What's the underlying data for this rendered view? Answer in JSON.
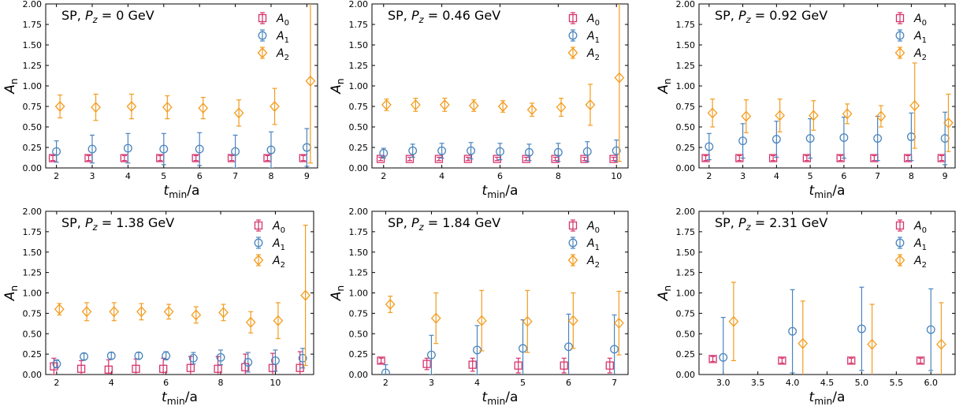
{
  "figure": {
    "ylabel_main": "A",
    "ylabel_sub": "n",
    "xlabel_main": "t",
    "xlabel_sub": "min",
    "xlabel_rest": "/a"
  },
  "legend": [
    {
      "main": "A",
      "sub": "0",
      "color": "#d6336c",
      "marker": "square"
    },
    {
      "main": "A",
      "sub": "1",
      "color": "#4a85bd",
      "marker": "circle"
    },
    {
      "main": "A",
      "sub": "2",
      "color": "#f39c1e",
      "marker": "diamond"
    }
  ],
  "chart_data": [
    {
      "type": "scatter",
      "title_prefix": "SP, ",
      "title_sym": "P",
      "title_sub": "z",
      "title_value": " = 0 GeV",
      "xlim": [
        1.7,
        9.3
      ],
      "ylim": [
        0,
        2
      ],
      "xticks": [
        2,
        3,
        4,
        5,
        6,
        7,
        8,
        9
      ],
      "yticks": [
        0,
        0.25,
        0.5,
        0.75,
        1.0,
        1.25,
        1.5,
        1.75,
        2.0
      ],
      "grid": false,
      "legend_position": "top-right",
      "series": [
        {
          "name": "A0",
          "x": [
            1.9,
            2.9,
            3.9,
            4.9,
            5.9,
            6.9,
            7.9,
            8.9
          ],
          "y": [
            0.12,
            0.12,
            0.12,
            0.12,
            0.12,
            0.12,
            0.12,
            0.12
          ],
          "err": [
            0.03,
            0.03,
            0.03,
            0.03,
            0.03,
            0.03,
            0.03,
            0.03
          ]
        },
        {
          "name": "A1",
          "x": [
            2.0,
            3.0,
            4.0,
            5.0,
            6.0,
            7.0,
            8.0,
            9.0
          ],
          "y": [
            0.2,
            0.23,
            0.24,
            0.23,
            0.23,
            0.2,
            0.22,
            0.25
          ],
          "err": [
            0.13,
            0.17,
            0.18,
            0.19,
            0.2,
            0.2,
            0.22,
            0.23
          ]
        },
        {
          "name": "A2",
          "x": [
            2.1,
            3.1,
            4.1,
            5.1,
            6.1,
            7.1,
            8.1,
            9.1
          ],
          "y": [
            0.75,
            0.74,
            0.75,
            0.74,
            0.73,
            0.67,
            0.75,
            1.06
          ],
          "err": [
            0.14,
            0.16,
            0.15,
            0.14,
            0.13,
            0.16,
            0.22,
            1.0
          ]
        }
      ]
    },
    {
      "type": "scatter",
      "title_prefix": "SP, ",
      "title_sym": "P",
      "title_sub": "z",
      "title_value": " = 0.46 GeV",
      "xlim": [
        1.6,
        10.4
      ],
      "ylim": [
        0,
        2
      ],
      "xticks": [
        2,
        4,
        6,
        8,
        10
      ],
      "yticks": [
        0,
        0.25,
        0.5,
        0.75,
        1.0,
        1.25,
        1.5,
        1.75,
        2.0
      ],
      "grid": false,
      "legend_position": "top-right",
      "series": [
        {
          "name": "A0",
          "x": [
            1.9,
            2.9,
            3.9,
            4.9,
            5.9,
            6.9,
            7.9,
            8.9,
            9.9
          ],
          "y": [
            0.11,
            0.11,
            0.11,
            0.11,
            0.11,
            0.11,
            0.11,
            0.11,
            0.11
          ],
          "err": [
            0.02,
            0.02,
            0.02,
            0.02,
            0.02,
            0.02,
            0.02,
            0.02,
            0.02
          ]
        },
        {
          "name": "A1",
          "x": [
            2.0,
            3.0,
            4.0,
            5.0,
            6.0,
            7.0,
            8.0,
            9.0,
            10.0
          ],
          "y": [
            0.18,
            0.21,
            0.21,
            0.21,
            0.2,
            0.19,
            0.19,
            0.2,
            0.21
          ],
          "err": [
            0.06,
            0.08,
            0.09,
            0.1,
            0.1,
            0.1,
            0.11,
            0.12,
            0.13
          ]
        },
        {
          "name": "A2",
          "x": [
            2.1,
            3.1,
            4.1,
            5.1,
            6.1,
            7.1,
            8.1,
            9.1,
            10.1
          ],
          "y": [
            0.77,
            0.77,
            0.77,
            0.76,
            0.75,
            0.71,
            0.74,
            0.77,
            1.1
          ],
          "err": [
            0.07,
            0.08,
            0.08,
            0.07,
            0.07,
            0.08,
            0.11,
            0.25,
            1.02
          ]
        }
      ]
    },
    {
      "type": "scatter",
      "title_prefix": "SP, ",
      "title_sym": "P",
      "title_sub": "z",
      "title_value": " = 0.92 GeV",
      "xlim": [
        1.7,
        9.3
      ],
      "ylim": [
        0,
        2
      ],
      "xticks": [
        2,
        3,
        4,
        5,
        6,
        7,
        8,
        9
      ],
      "yticks": [
        0,
        0.25,
        0.5,
        0.75,
        1.0,
        1.25,
        1.5,
        1.75,
        2.0
      ],
      "grid": false,
      "legend_position": "top-right",
      "series": [
        {
          "name": "A0",
          "x": [
            1.9,
            2.9,
            3.9,
            4.9,
            5.9,
            6.9,
            7.9,
            8.9
          ],
          "y": [
            0.12,
            0.12,
            0.12,
            0.12,
            0.12,
            0.12,
            0.12,
            0.12
          ],
          "err": [
            0.03,
            0.03,
            0.03,
            0.03,
            0.03,
            0.03,
            0.03,
            0.03
          ]
        },
        {
          "name": "A1",
          "x": [
            2.0,
            3.0,
            4.0,
            5.0,
            6.0,
            7.0,
            8.0,
            9.0
          ],
          "y": [
            0.26,
            0.33,
            0.35,
            0.36,
            0.37,
            0.36,
            0.38,
            0.36
          ],
          "err": [
            0.16,
            0.21,
            0.22,
            0.24,
            0.25,
            0.27,
            0.29,
            0.32
          ]
        },
        {
          "name": "A2",
          "x": [
            2.1,
            3.1,
            4.1,
            5.1,
            6.1,
            7.1,
            8.1,
            9.1
          ],
          "y": [
            0.67,
            0.63,
            0.64,
            0.64,
            0.66,
            0.63,
            0.76,
            0.55
          ],
          "err": [
            0.17,
            0.2,
            0.2,
            0.18,
            0.12,
            0.13,
            0.52,
            0.35
          ]
        }
      ]
    },
    {
      "type": "scatter",
      "title_prefix": "SP, ",
      "title_sym": "P",
      "title_sub": "z",
      "title_value": " = 1.38 GeV",
      "xlim": [
        1.6,
        11.4
      ],
      "ylim": [
        0,
        2
      ],
      "xticks": [
        2,
        4,
        6,
        8,
        10
      ],
      "yticks": [
        0,
        0.25,
        0.5,
        0.75,
        1.0,
        1.25,
        1.5,
        1.75,
        2.0
      ],
      "grid": false,
      "legend_position": "top-right",
      "series": [
        {
          "name": "A0",
          "x": [
            1.9,
            2.9,
            3.9,
            4.9,
            5.9,
            6.9,
            7.9,
            8.9,
            9.9,
            10.9
          ],
          "y": [
            0.1,
            0.07,
            0.06,
            0.07,
            0.07,
            0.08,
            0.07,
            0.09,
            0.08,
            0.08
          ],
          "err": [
            0.1,
            0.1,
            0.12,
            0.12,
            0.13,
            0.14,
            0.15,
            0.16,
            0.18,
            0.2
          ]
        },
        {
          "name": "A1",
          "x": [
            2.0,
            3.0,
            4.0,
            5.0,
            6.0,
            7.0,
            8.0,
            9.0,
            10.0,
            11.0
          ],
          "y": [
            0.13,
            0.22,
            0.23,
            0.23,
            0.23,
            0.2,
            0.21,
            0.15,
            0.17,
            0.2
          ],
          "err": [
            0.05,
            0.04,
            0.04,
            0.04,
            0.05,
            0.07,
            0.09,
            0.12,
            0.13,
            0.12
          ]
        },
        {
          "name": "A2",
          "x": [
            2.1,
            3.1,
            4.1,
            5.1,
            6.1,
            7.1,
            8.1,
            9.1,
            10.1,
            11.1
          ],
          "y": [
            0.8,
            0.77,
            0.77,
            0.77,
            0.77,
            0.73,
            0.76,
            0.64,
            0.66,
            0.97
          ],
          "err": [
            0.07,
            0.11,
            0.11,
            0.1,
            0.09,
            0.1,
            0.1,
            0.13,
            0.22,
            0.86
          ]
        }
      ]
    },
    {
      "type": "scatter",
      "title_prefix": "SP, ",
      "title_sym": "P",
      "title_sub": "z",
      "title_value": " = 1.84 GeV",
      "xlim": [
        1.7,
        7.3
      ],
      "ylim": [
        0,
        2
      ],
      "xticks": [
        2,
        3,
        4,
        5,
        6,
        7
      ],
      "yticks": [
        0,
        0.25,
        0.5,
        0.75,
        1.0,
        1.25,
        1.5,
        1.75,
        2.0
      ],
      "grid": false,
      "legend_position": "top-right",
      "series": [
        {
          "name": "A0",
          "x": [
            1.9,
            2.9,
            3.9,
            4.9,
            5.9,
            6.9
          ],
          "y": [
            0.17,
            0.13,
            0.12,
            0.11,
            0.11,
            0.11
          ],
          "err": [
            0.03,
            0.07,
            0.08,
            0.09,
            0.09,
            0.09
          ]
        },
        {
          "name": "A1",
          "x": [
            2.0,
            3.0,
            4.0,
            5.0,
            6.0,
            7.0
          ],
          "y": [
            0.02,
            0.24,
            0.3,
            0.32,
            0.34,
            0.31
          ],
          "err": [
            0.1,
            0.24,
            0.3,
            0.35,
            0.4,
            0.42
          ]
        },
        {
          "name": "A2",
          "x": [
            2.1,
            3.1,
            4.1,
            5.1,
            6.1,
            7.1
          ],
          "y": [
            0.86,
            0.69,
            0.66,
            0.65,
            0.66,
            0.63
          ],
          "err": [
            0.1,
            0.31,
            0.37,
            0.38,
            0.34,
            0.39
          ]
        }
      ]
    },
    {
      "type": "scatter",
      "title_prefix": "SP, ",
      "title_sym": "P",
      "title_sub": "z",
      "title_value": " = 2.31 GeV",
      "xlim": [
        2.65,
        6.35
      ],
      "ylim": [
        0,
        2
      ],
      "xticks": [
        3.0,
        3.5,
        4.0,
        4.5,
        5.0,
        5.5,
        6.0
      ],
      "xtick_labels": [
        "3.0",
        "3.5",
        "4.0",
        "4.5",
        "5.0",
        "5.5",
        "6.0"
      ],
      "yticks": [
        0,
        0.25,
        0.5,
        0.75,
        1.0,
        1.25,
        1.5,
        1.75,
        2.0
      ],
      "grid": false,
      "legend_position": "top-right",
      "series": [
        {
          "name": "A0",
          "x": [
            2.85,
            3.85,
            4.85,
            5.85
          ],
          "y": [
            0.19,
            0.17,
            0.17,
            0.17
          ],
          "err": [
            0.03,
            0.03,
            0.03,
            0.03
          ]
        },
        {
          "name": "A1",
          "x": [
            3.0,
            4.0,
            5.0,
            6.0
          ],
          "y": [
            0.21,
            0.53,
            0.56,
            0.55
          ],
          "err": [
            0.49,
            0.51,
            0.51,
            0.5
          ]
        },
        {
          "name": "A2",
          "x": [
            3.15,
            4.15,
            5.15,
            6.15
          ],
          "y": [
            0.65,
            0.38,
            0.37,
            0.37
          ],
          "err": [
            0.48,
            0.52,
            0.49,
            0.51
          ]
        }
      ]
    }
  ]
}
